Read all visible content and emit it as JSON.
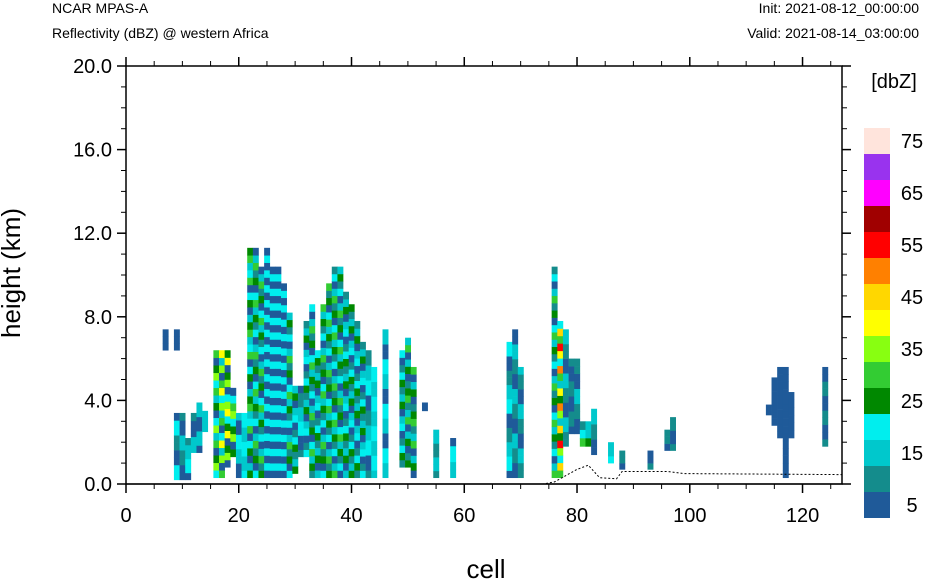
{
  "header": {
    "model": "NCAR MPAS-A",
    "field": "Reflectivity (dBZ) @ western Africa",
    "init": "Init: 2021-08-12_00:00:00",
    "valid": "Valid: 2021-08-14_03:00:00"
  },
  "colors": {
    "levels": [
      "#1f5a99",
      "#148c8c",
      "#00c8cc",
      "#00eeee",
      "#008800",
      "#33cc33",
      "#88ff11",
      "#ffff00",
      "#ffd700",
      "#ff8000",
      "#ff0000",
      "#a00000",
      "#ff00ff",
      "#9933ee",
      "#ffe4dc"
    ]
  },
  "chart_data": {
    "type": "heatmap",
    "xlabel": "cell",
    "ylabel": "height (km)",
    "xlim": [
      0,
      127
    ],
    "ylim": [
      0,
      20
    ],
    "xticks": [
      "0",
      "20",
      "40",
      "60",
      "80",
      "100",
      "120"
    ],
    "xtick_values": [
      0,
      20,
      40,
      60,
      80,
      100,
      120
    ],
    "yticks": [
      "0.0",
      "4.0",
      "8.0",
      "12.0",
      "16.0",
      "20.0"
    ],
    "ytick_values": [
      0,
      4,
      8,
      12,
      16,
      20
    ],
    "colorbar": {
      "title": "[dbZ]",
      "labels": [
        "5",
        "15",
        "25",
        "35",
        "45",
        "55",
        "65",
        "75"
      ],
      "label_values": [
        5,
        15,
        25,
        35,
        45,
        55,
        65,
        75
      ],
      "levels": [
        5,
        10,
        15,
        20,
        25,
        30,
        35,
        40,
        45,
        50,
        55,
        60,
        65,
        70,
        75
      ]
    },
    "cell_height_km": 0.35,
    "terrain_km": [
      [
        0,
        0
      ],
      [
        74,
        0
      ],
      [
        76,
        0.1
      ],
      [
        80,
        0.7
      ],
      [
        82,
        0.9
      ],
      [
        84,
        0.3
      ],
      [
        87,
        0.25
      ],
      [
        88,
        0.6
      ],
      [
        92,
        0.6
      ],
      [
        96,
        0.6
      ],
      [
        99,
        0.5
      ],
      [
        127,
        0.45
      ]
    ],
    "columns": [
      {
        "cell": 7,
        "bottom": 6.4,
        "top": 7.4,
        "levels": [
          5
        ]
      },
      {
        "cell": 9,
        "bottom": 6.4,
        "top": 7.4,
        "levels": [
          5
        ]
      },
      {
        "cell": 9,
        "bottom": 0.2,
        "top": 3.4,
        "levels": [
          5,
          10,
          20
        ]
      },
      {
        "cell": 10,
        "bottom": 0.2,
        "top": 3.4,
        "levels": [
          5,
          10,
          15
        ]
      },
      {
        "cell": 11,
        "bottom": 0.2,
        "top": 2.2,
        "levels": [
          5,
          10,
          15,
          20
        ]
      },
      {
        "cell": 12,
        "bottom": 1.5,
        "top": 3.4,
        "levels": [
          5,
          10,
          15
        ]
      },
      {
        "cell": 13,
        "bottom": 1.5,
        "top": 3.9,
        "levels": [
          5,
          15
        ]
      },
      {
        "cell": 14,
        "bottom": 2.5,
        "top": 3.5,
        "levels": [
          15
        ]
      },
      {
        "cell": 16,
        "bottom": 0.3,
        "top": 6.4,
        "levels": [
          5,
          15,
          20,
          25,
          30,
          35
        ]
      },
      {
        "cell": 17,
        "bottom": 0.3,
        "top": 6.4,
        "levels": [
          5,
          15,
          20,
          30,
          35,
          40
        ]
      },
      {
        "cell": 18,
        "bottom": 0.8,
        "top": 6.4,
        "levels": [
          5,
          20,
          25,
          35,
          40
        ]
      },
      {
        "cell": 19,
        "bottom": 1.3,
        "top": 4.6,
        "levels": [
          5,
          20,
          25,
          30,
          35
        ]
      },
      {
        "cell": 20,
        "bottom": 0.3,
        "top": 3.4,
        "levels": [
          5,
          15,
          20
        ]
      },
      {
        "cell": 21,
        "bottom": 0.3,
        "top": 3.4,
        "levels": [
          15,
          20
        ]
      },
      {
        "cell": 22,
        "bottom": 0.3,
        "top": 11.3,
        "levels": [
          5,
          15,
          20,
          25,
          30
        ]
      },
      {
        "cell": 23,
        "bottom": 0.3,
        "top": 11.3,
        "levels": [
          5,
          10,
          15,
          20,
          25,
          30
        ]
      },
      {
        "cell": 24,
        "bottom": 0.3,
        "top": 10.4,
        "levels": [
          5,
          10,
          15,
          20,
          25,
          30
        ]
      },
      {
        "cell": 25,
        "bottom": 0.3,
        "top": 11.3,
        "levels": [
          5,
          10,
          15,
          20,
          25,
          30,
          35
        ]
      },
      {
        "cell": 26,
        "bottom": 0.3,
        "top": 10.4,
        "levels": [
          5,
          10,
          15,
          20,
          25,
          30,
          40
        ]
      },
      {
        "cell": 27,
        "bottom": 0.3,
        "top": 10.4,
        "levels": [
          5,
          10,
          15,
          20,
          25,
          30,
          40
        ]
      },
      {
        "cell": 28,
        "bottom": 0.3,
        "top": 9.6,
        "levels": [
          5,
          10,
          15,
          20,
          25,
          30,
          35
        ]
      },
      {
        "cell": 29,
        "bottom": 0.3,
        "top": 8.2,
        "levels": [
          5,
          10,
          15,
          20,
          25,
          30
        ]
      },
      {
        "cell": 30,
        "bottom": 0.5,
        "top": 4.7,
        "levels": [
          5,
          10,
          15,
          20,
          25
        ]
      },
      {
        "cell": 31,
        "bottom": 1.3,
        "top": 4.7,
        "levels": [
          5,
          10,
          15,
          20
        ]
      },
      {
        "cell": 32,
        "bottom": 1.3,
        "top": 7.8,
        "levels": [
          5,
          10,
          15,
          20,
          25
        ]
      },
      {
        "cell": 33,
        "bottom": 0.3,
        "top": 8.6,
        "levels": [
          5,
          10,
          15,
          20,
          25,
          30
        ]
      },
      {
        "cell": 34,
        "bottom": 0.3,
        "top": 6.4,
        "levels": [
          5,
          10,
          15,
          20,
          25
        ]
      },
      {
        "cell": 35,
        "bottom": 0.3,
        "top": 8.6,
        "levels": [
          5,
          10,
          15,
          20,
          25,
          30
        ]
      },
      {
        "cell": 36,
        "bottom": 0.3,
        "top": 9.6,
        "levels": [
          5,
          10,
          15,
          20,
          25,
          30
        ]
      },
      {
        "cell": 37,
        "bottom": 0.3,
        "top": 10.4,
        "levels": [
          5,
          10,
          15,
          20,
          25,
          30
        ]
      },
      {
        "cell": 38,
        "bottom": 0.3,
        "top": 10.4,
        "levels": [
          5,
          10,
          15,
          20,
          25,
          30
        ]
      },
      {
        "cell": 39,
        "bottom": 0.3,
        "top": 9.2,
        "levels": [
          5,
          10,
          15,
          20,
          25
        ]
      },
      {
        "cell": 40,
        "bottom": 0.3,
        "top": 8.6,
        "levels": [
          5,
          10,
          15,
          20,
          25
        ]
      },
      {
        "cell": 41,
        "bottom": 0.3,
        "top": 7.8,
        "levels": [
          5,
          10,
          15,
          20,
          25
        ]
      },
      {
        "cell": 42,
        "bottom": 0.3,
        "top": 6.8,
        "levels": [
          5,
          10,
          15,
          20,
          25
        ]
      },
      {
        "cell": 43,
        "bottom": 0.3,
        "top": 6.4,
        "levels": [
          5,
          10,
          15,
          20
        ]
      },
      {
        "cell": 44,
        "bottom": 0.3,
        "top": 5.6,
        "levels": [
          15,
          20
        ]
      },
      {
        "cell": 46,
        "bottom": 0.3,
        "top": 7.4,
        "levels": [
          5,
          15,
          20
        ]
      },
      {
        "cell": 49,
        "bottom": 0.8,
        "top": 6.4,
        "levels": [
          5,
          10,
          15,
          20,
          25
        ]
      },
      {
        "cell": 50,
        "bottom": 0.8,
        "top": 7.0,
        "levels": [
          5,
          10,
          15,
          25,
          30
        ]
      },
      {
        "cell": 51,
        "bottom": 0.3,
        "top": 5.6,
        "levels": [
          5,
          10,
          15,
          25,
          30
        ]
      },
      {
        "cell": 53,
        "bottom": 3.5,
        "top": 3.9,
        "levels": [
          5
        ]
      },
      {
        "cell": 55,
        "bottom": 0.3,
        "top": 2.6,
        "levels": [
          10,
          15
        ]
      },
      {
        "cell": 58,
        "bottom": 0.3,
        "top": 2.2,
        "levels": [
          5,
          15,
          20
        ]
      },
      {
        "cell": 68,
        "bottom": 0.3,
        "top": 6.8,
        "levels": [
          5,
          10,
          15,
          20
        ]
      },
      {
        "cell": 69,
        "bottom": 0.3,
        "top": 7.4,
        "levels": [
          5,
          10,
          15
        ]
      },
      {
        "cell": 70,
        "bottom": 0.3,
        "top": 5.6,
        "levels": [
          5,
          10,
          15
        ]
      },
      {
        "cell": 76,
        "bottom": 0.3,
        "top": 10.4,
        "levels": [
          5,
          10,
          15,
          20,
          25,
          30
        ]
      },
      {
        "cell": 77,
        "bottom": 0.3,
        "top": 7.8,
        "levels": [
          15,
          20,
          25,
          30,
          35,
          40,
          45,
          50,
          55
        ]
      },
      {
        "cell": 78,
        "bottom": 1.8,
        "top": 7.4,
        "levels": [
          5,
          10,
          15
        ]
      },
      {
        "cell": 79,
        "bottom": 2.4,
        "top": 6.0,
        "levels": [
          5,
          10
        ]
      },
      {
        "cell": 80,
        "bottom": 2.4,
        "top": 6.0,
        "levels": [
          5,
          10,
          15
        ]
      },
      {
        "cell": 81,
        "bottom": 1.8,
        "top": 3.0,
        "levels": [
          5,
          10,
          20,
          25,
          30
        ]
      },
      {
        "cell": 82,
        "bottom": 1.8,
        "top": 3.0,
        "levels": [
          15,
          25
        ]
      },
      {
        "cell": 83,
        "bottom": 1.4,
        "top": 3.6,
        "levels": [
          5,
          10,
          15
        ]
      },
      {
        "cell": 86,
        "bottom": 1.0,
        "top": 2.0,
        "levels": [
          15,
          20
        ]
      },
      {
        "cell": 88,
        "bottom": 0.7,
        "top": 1.6,
        "levels": [
          5,
          10
        ]
      },
      {
        "cell": 93,
        "bottom": 0.7,
        "top": 1.6,
        "levels": [
          5,
          10
        ]
      },
      {
        "cell": 96,
        "bottom": 1.6,
        "top": 2.6,
        "levels": [
          5,
          10
        ]
      },
      {
        "cell": 97,
        "bottom": 1.6,
        "top": 3.2,
        "levels": [
          5,
          10
        ]
      },
      {
        "cell": 114,
        "bottom": 3.3,
        "top": 3.8,
        "levels": [
          5
        ]
      },
      {
        "cell": 115,
        "bottom": 2.8,
        "top": 5.1,
        "levels": [
          5
        ]
      },
      {
        "cell": 116,
        "bottom": 2.2,
        "top": 5.6,
        "levels": [
          5
        ]
      },
      {
        "cell": 117,
        "bottom": 0.3,
        "top": 5.6,
        "levels": [
          5
        ]
      },
      {
        "cell": 118,
        "bottom": 2.2,
        "top": 4.4,
        "levels": [
          5
        ]
      },
      {
        "cell": 124,
        "bottom": 1.8,
        "top": 5.6,
        "levels": [
          5,
          10
        ]
      }
    ]
  }
}
